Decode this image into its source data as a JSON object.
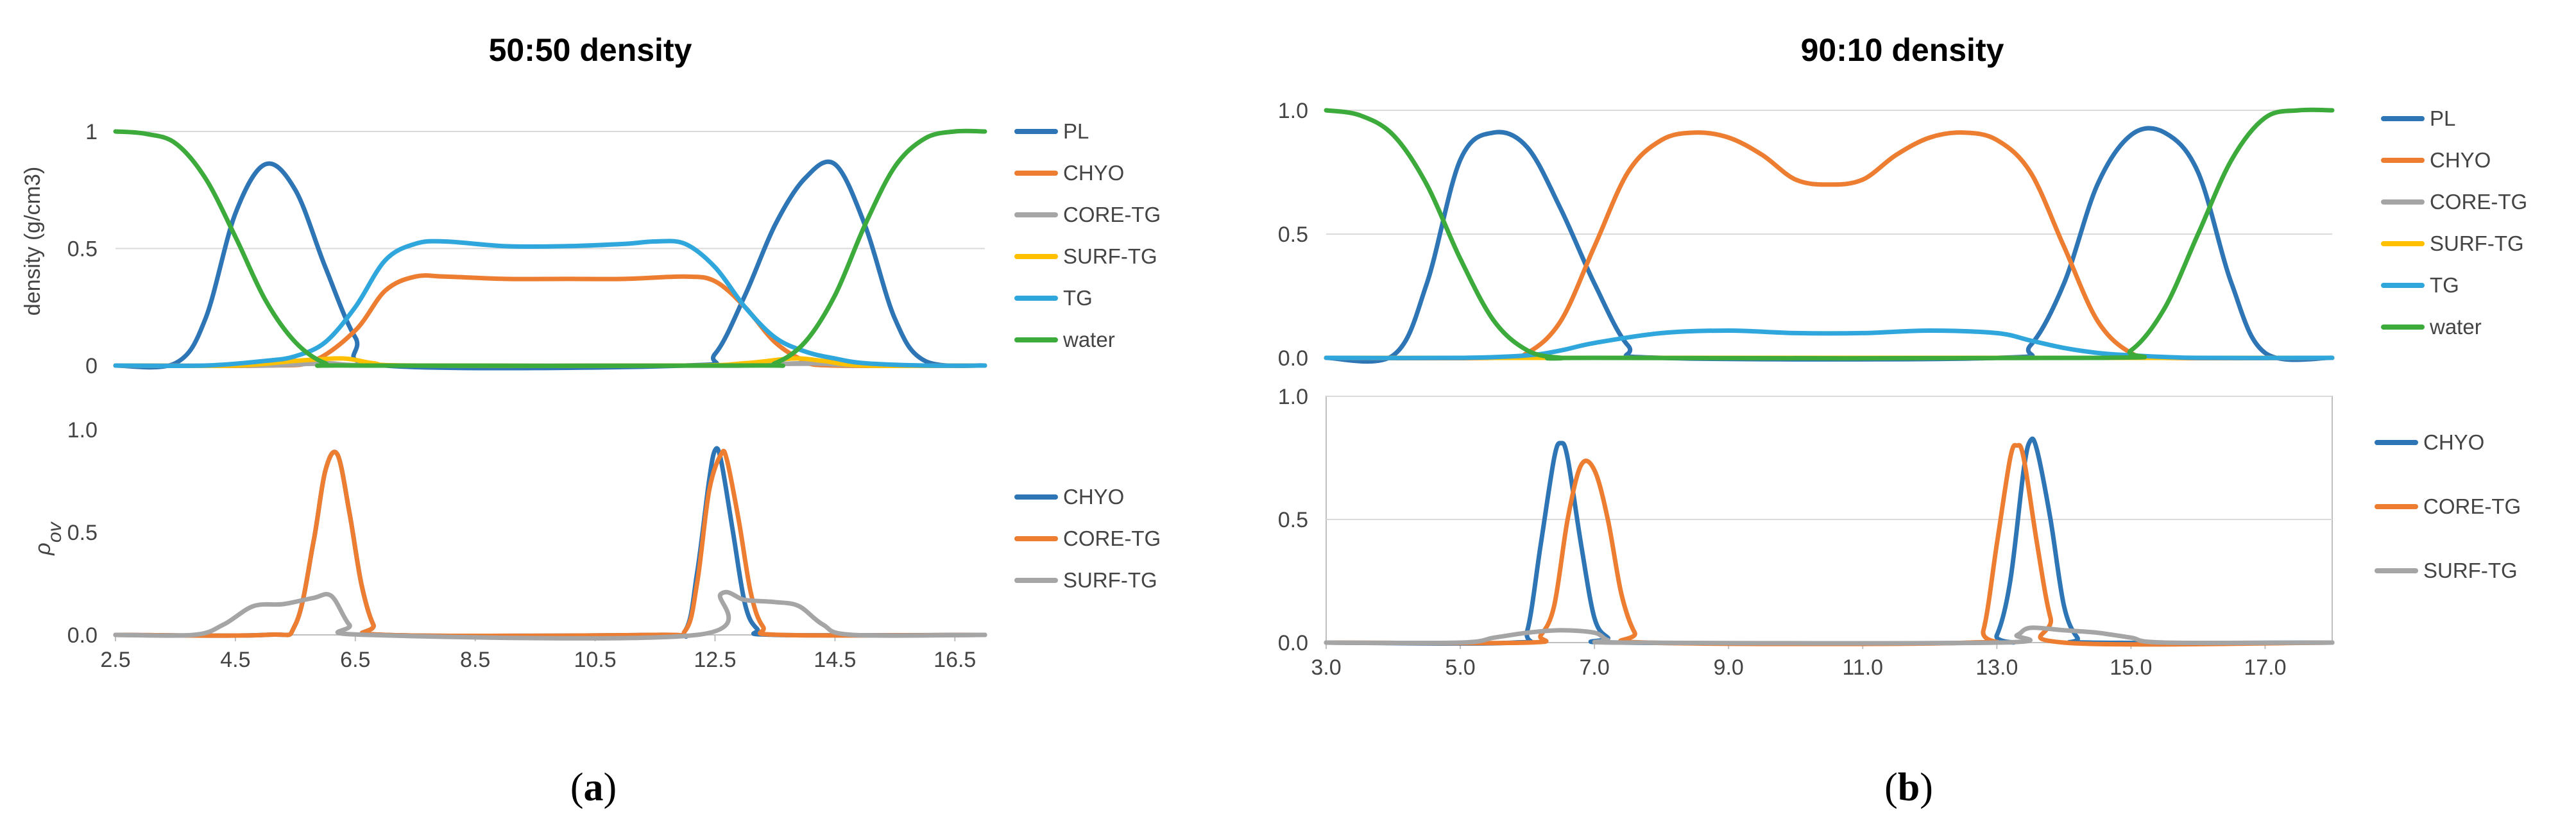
{
  "figure": {
    "caption_a_open": "(",
    "caption_a_letter": "a",
    "caption_a_close": ")",
    "caption_b_open": "(",
    "caption_b_letter": "b",
    "caption_b_close": ")"
  },
  "colors": {
    "PL": "#2e75b6",
    "CHYO": "#ed7d31",
    "CORE-TG": "#a5a5a5",
    "SURF-TG": "#ffc000",
    "TG": "#2fa7dc",
    "water": "#3cab3c",
    "CHYO_ov": "#2e75b6",
    "CORE-TG_ov": "#ed7d31",
    "SURF-TG_ov": "#a5a5a5",
    "grid": "#d9d9d9",
    "axis": "#bfbfbf"
  },
  "chart_data": [
    {
      "id": "a_top",
      "type": "line",
      "title": "50:50 density",
      "ylabel": "density (g/cm3)",
      "xlim": [
        2.5,
        17.0
      ],
      "ylim": [
        0,
        1
      ],
      "yticks": [
        0,
        0.5,
        1
      ],
      "ytick_labels": [
        "0",
        "0.5",
        "1"
      ],
      "grid": true,
      "legend": "right",
      "series": [
        {
          "name": "PL",
          "color": "PL",
          "x": [
            2.5,
            3.5,
            4.0,
            4.5,
            5.0,
            5.5,
            6.0,
            6.5,
            7.0,
            12.0,
            12.5,
            13.0,
            13.5,
            14.0,
            14.5,
            15.0,
            15.5,
            16.0,
            17.0
          ],
          "y": [
            0,
            0.01,
            0.2,
            0.65,
            0.86,
            0.75,
            0.42,
            0.12,
            0,
            0,
            0.05,
            0.3,
            0.6,
            0.8,
            0.86,
            0.6,
            0.2,
            0.02,
            0
          ]
        },
        {
          "name": "CHYO",
          "color": "CHYO",
          "x": [
            2.5,
            5.0,
            5.8,
            6.5,
            7.0,
            7.5,
            8.0,
            9.0,
            10.0,
            11.0,
            12.0,
            12.5,
            13.0,
            13.5,
            14.0,
            14.5,
            17.0
          ],
          "y": [
            0,
            0,
            0.02,
            0.15,
            0.32,
            0.38,
            0.38,
            0.37,
            0.37,
            0.37,
            0.38,
            0.36,
            0.25,
            0.1,
            0.02,
            0,
            0
          ]
        },
        {
          "name": "CORE-TG",
          "color": "CORE-TG",
          "x": [
            2.5,
            5.0,
            6.0,
            7.0,
            12.0,
            13.0,
            14.0,
            15.0,
            17.0
          ],
          "y": [
            0,
            0,
            0.01,
            0,
            0,
            0,
            0.01,
            0,
            0
          ]
        },
        {
          "name": "SURF-TG",
          "color": "SURF-TG",
          "x": [
            2.5,
            4.5,
            5.5,
            6.3,
            6.8,
            7.5,
            12.0,
            13.0,
            13.8,
            14.3,
            15.0,
            17.0
          ],
          "y": [
            0,
            0,
            0.02,
            0.03,
            0.01,
            0,
            0,
            0.01,
            0.03,
            0.02,
            0,
            0
          ]
        },
        {
          "name": "TG",
          "color": "TG",
          "x": [
            2.5,
            4.0,
            5.0,
            5.5,
            6.0,
            6.5,
            7.0,
            7.5,
            8.0,
            9.0,
            10.0,
            11.0,
            11.5,
            12.0,
            12.5,
            13.0,
            13.5,
            14.0,
            14.5,
            15.0,
            16.0,
            17.0
          ],
          "y": [
            0,
            0,
            0.02,
            0.04,
            0.1,
            0.25,
            0.45,
            0.52,
            0.53,
            0.51,
            0.51,
            0.52,
            0.53,
            0.52,
            0.42,
            0.25,
            0.12,
            0.06,
            0.03,
            0.01,
            0,
            0
          ]
        },
        {
          "name": "water",
          "color": "water",
          "x": [
            2.5,
            3.0,
            3.5,
            4.0,
            4.5,
            5.0,
            5.5,
            6.0,
            6.5,
            13.0,
            13.5,
            14.0,
            14.5,
            15.0,
            15.5,
            16.0,
            16.5,
            17.0
          ],
          "y": [
            1.0,
            0.99,
            0.95,
            0.8,
            0.55,
            0.28,
            0.1,
            0.01,
            0,
            0,
            0.01,
            0.1,
            0.3,
            0.6,
            0.85,
            0.97,
            1.0,
            1.0
          ]
        }
      ]
    },
    {
      "id": "a_bottom",
      "type": "line",
      "ylabel": "ρ",
      "ylabel_sub": "ov",
      "xlim": [
        2.5,
        17.0
      ],
      "ylim": [
        0,
        1
      ],
      "yticks": [
        0,
        0.5,
        1
      ],
      "ytick_labels": [
        "0.0",
        "0.5",
        "1.0"
      ],
      "xticks": [
        2.5,
        4.5,
        6.5,
        8.5,
        10.5,
        12.5,
        14.5,
        16.5
      ],
      "xtick_labels": [
        "2.5",
        "4.5",
        "6.5",
        "8.5",
        "10.5",
        "12.5",
        "14.5",
        "16.5"
      ],
      "grid": false,
      "legend": "right",
      "series": [
        {
          "name": "CHYO",
          "color": "CHYO_ov",
          "x": [
            2.5,
            5.0,
            5.5,
            5.8,
            6.0,
            6.2,
            6.4,
            6.6,
            6.8,
            7.0,
            11.5,
            12.0,
            12.2,
            12.4,
            12.5,
            12.6,
            12.8,
            13.0,
            13.2,
            13.5,
            17.0
          ],
          "y": [
            0,
            0,
            0.05,
            0.45,
            0.8,
            0.88,
            0.6,
            0.25,
            0.05,
            0,
            0,
            0.02,
            0.3,
            0.75,
            0.9,
            0.85,
            0.5,
            0.15,
            0.03,
            0,
            0
          ]
        },
        {
          "name": "CORE-TG",
          "color": "CORE-TG_ov",
          "x": [
            2.5,
            5.0,
            5.5,
            5.8,
            6.0,
            6.2,
            6.4,
            6.6,
            6.8,
            7.0,
            11.5,
            12.0,
            12.2,
            12.4,
            12.6,
            12.7,
            12.9,
            13.1,
            13.3,
            13.6,
            17.0
          ],
          "y": [
            0,
            0,
            0.05,
            0.45,
            0.8,
            0.88,
            0.6,
            0.25,
            0.05,
            0,
            0,
            0.02,
            0.25,
            0.7,
            0.88,
            0.85,
            0.55,
            0.2,
            0.04,
            0,
            0
          ]
        },
        {
          "name": "SURF-TG",
          "color": "SURF-TG_ov",
          "x": [
            2.5,
            3.8,
            4.3,
            4.8,
            5.3,
            5.8,
            6.1,
            6.4,
            6.7,
            12.2,
            12.6,
            13.0,
            13.5,
            13.9,
            14.3,
            14.8,
            17.0
          ],
          "y": [
            0,
            0,
            0.05,
            0.14,
            0.15,
            0.18,
            0.19,
            0.05,
            0,
            0,
            0.2,
            0.17,
            0.16,
            0.14,
            0.05,
            0,
            0
          ]
        }
      ]
    },
    {
      "id": "b_top",
      "type": "line",
      "title": "90:10 density",
      "xlim": [
        3.0,
        18.0
      ],
      "ylim": [
        0,
        1
      ],
      "yticks": [
        0,
        0.5,
        1
      ],
      "ytick_labels": [
        "0.0",
        "0.5",
        "1.0"
      ],
      "grid": true,
      "legend": "right",
      "series": [
        {
          "name": "PL",
          "color": "PL",
          "x": [
            3.0,
            4.0,
            4.5,
            5.0,
            5.5,
            6.0,
            6.5,
            7.0,
            7.5,
            8.0,
            13.0,
            13.5,
            14.0,
            14.5,
            15.0,
            15.5,
            16.0,
            16.5,
            17.0,
            18.0
          ],
          "y": [
            0,
            0.01,
            0.3,
            0.8,
            0.91,
            0.85,
            0.6,
            0.3,
            0.05,
            0,
            0,
            0.05,
            0.3,
            0.7,
            0.9,
            0.91,
            0.75,
            0.3,
            0.02,
            0
          ]
        },
        {
          "name": "CHYO",
          "color": "CHYO",
          "x": [
            3.0,
            5.5,
            6.0,
            6.5,
            7.0,
            7.5,
            8.0,
            8.5,
            9.0,
            9.5,
            10.0,
            10.5,
            11.0,
            11.5,
            12.0,
            12.5,
            13.0,
            13.5,
            14.0,
            14.5,
            15.0,
            15.5,
            18.0
          ],
          "y": [
            0,
            0,
            0.02,
            0.15,
            0.45,
            0.75,
            0.88,
            0.91,
            0.89,
            0.82,
            0.72,
            0.7,
            0.72,
            0.82,
            0.89,
            0.91,
            0.88,
            0.75,
            0.45,
            0.15,
            0.02,
            0,
            0
          ]
        },
        {
          "name": "CORE-TG",
          "color": "CORE-TG",
          "x": [
            3.0,
            18.0
          ],
          "y": [
            0,
            0
          ]
        },
        {
          "name": "SURF-TG",
          "color": "SURF-TG",
          "x": [
            3.0,
            18.0
          ],
          "y": [
            0,
            0
          ]
        },
        {
          "name": "TG",
          "color": "TG",
          "x": [
            3.0,
            5.0,
            6.0,
            6.5,
            7.0,
            8.0,
            9.0,
            10.0,
            11.0,
            12.0,
            13.0,
            13.5,
            14.0,
            14.5,
            15.0,
            16.0,
            18.0
          ],
          "y": [
            0,
            0,
            0.01,
            0.03,
            0.06,
            0.1,
            0.11,
            0.1,
            0.1,
            0.11,
            0.1,
            0.07,
            0.04,
            0.02,
            0.01,
            0,
            0
          ]
        },
        {
          "name": "water",
          "color": "water",
          "x": [
            3.0,
            3.5,
            4.0,
            4.5,
            5.0,
            5.5,
            6.0,
            6.5,
            7.0,
            14.5,
            15.0,
            15.5,
            16.0,
            16.5,
            17.0,
            17.5,
            18.0
          ],
          "y": [
            1.0,
            0.98,
            0.9,
            0.7,
            0.4,
            0.15,
            0.03,
            0,
            0,
            0,
            0.03,
            0.2,
            0.5,
            0.8,
            0.97,
            1.0,
            1.0
          ]
        }
      ]
    },
    {
      "id": "b_bottom",
      "type": "line",
      "xlim": [
        3.0,
        18.0
      ],
      "ylim": [
        0,
        1
      ],
      "yticks": [
        0,
        0.5,
        1
      ],
      "ytick_labels": [
        "0.0",
        "0.5",
        "1.0"
      ],
      "xticks": [
        3,
        5,
        7,
        9,
        11,
        13,
        15,
        17
      ],
      "xtick_labels": [
        "3.0",
        "5.0",
        "7.0",
        "9.0",
        "11.0",
        "13.0",
        "15.0",
        "17.0"
      ],
      "grid": true,
      "legend": "right",
      "series": [
        {
          "name": "CHYO",
          "color": "CHYO_ov",
          "x": [
            3.0,
            5.8,
            6.0,
            6.2,
            6.4,
            6.5,
            6.6,
            6.8,
            7.0,
            7.2,
            7.4,
            12.8,
            13.0,
            13.2,
            13.4,
            13.5,
            13.6,
            13.8,
            14.0,
            14.2,
            14.4,
            18.0
          ],
          "y": [
            0,
            0,
            0.05,
            0.4,
            0.75,
            0.81,
            0.75,
            0.4,
            0.1,
            0.02,
            0,
            0,
            0.03,
            0.25,
            0.7,
            0.82,
            0.78,
            0.5,
            0.15,
            0.02,
            0,
            0
          ]
        },
        {
          "name": "CORE-TG",
          "color": "CORE-TG_ov",
          "x": [
            3.0,
            6.0,
            6.2,
            6.4,
            6.6,
            6.8,
            7.0,
            7.2,
            7.4,
            7.6,
            7.8,
            12.6,
            12.8,
            13.0,
            13.2,
            13.3,
            13.4,
            13.6,
            13.8,
            14.0,
            18.0
          ],
          "y": [
            0,
            0,
            0.03,
            0.15,
            0.5,
            0.72,
            0.7,
            0.5,
            0.2,
            0.04,
            0,
            0,
            0.05,
            0.4,
            0.75,
            0.8,
            0.75,
            0.4,
            0.1,
            0,
            0
          ]
        },
        {
          "name": "SURF-TG",
          "color": "SURF-TG_ov",
          "x": [
            3.0,
            5.0,
            5.5,
            6.0,
            6.5,
            7.0,
            7.2,
            7.5,
            13.0,
            13.3,
            13.5,
            14.0,
            14.5,
            15.0,
            15.5,
            18.0
          ],
          "y": [
            0,
            0,
            0.02,
            0.04,
            0.05,
            0.04,
            0.01,
            0,
            0,
            0.03,
            0.06,
            0.05,
            0.04,
            0.02,
            0,
            0
          ]
        }
      ]
    }
  ]
}
